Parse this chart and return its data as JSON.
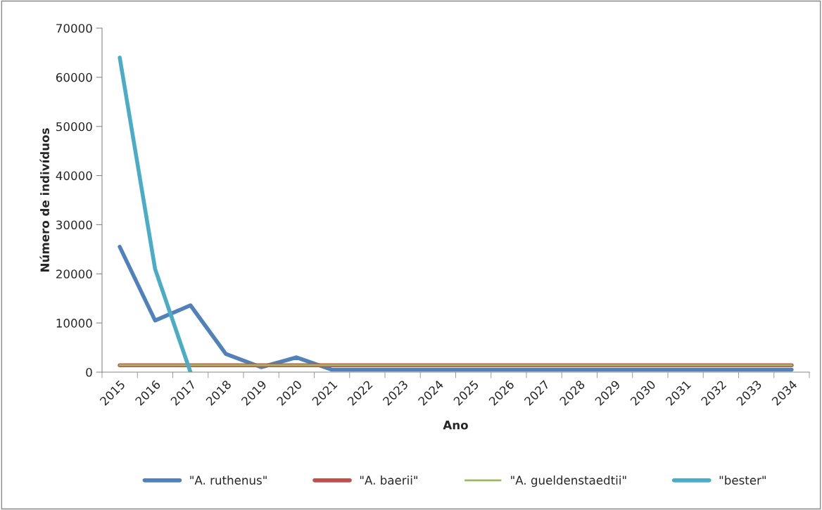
{
  "chart_data": {
    "type": "line",
    "xlabel": "Ano",
    "ylabel": "Número de indivíduos",
    "categories": [
      "2015",
      "2016",
      "2017",
      "2018",
      "2019",
      "2020",
      "2021",
      "2022",
      "2023",
      "2024",
      "2025",
      "2026",
      "2027",
      "2028",
      "2029",
      "2030",
      "2031",
      "2032",
      "2033",
      "2034"
    ],
    "series": [
      {
        "name": "\"A. ruthenus\"",
        "color": "#4f81bd",
        "values": [
          25500,
          10500,
          13600,
          3700,
          1000,
          3000,
          500,
          500,
          500,
          500,
          500,
          500,
          500,
          500,
          500,
          500,
          500,
          500,
          500,
          500
        ]
      },
      {
        "name": "\"A. baerii\"",
        "color": "#c0504d",
        "values": [
          1400,
          1400,
          1400,
          1400,
          1400,
          1400,
          1400,
          1400,
          1400,
          1400,
          1400,
          1400,
          1400,
          1400,
          1400,
          1400,
          1400,
          1400,
          1400,
          1400
        ]
      },
      {
        "name": "\"A. gueldenstaedtii\"",
        "color": "#9bbb59",
        "values": [
          1400,
          1400,
          1400,
          1400,
          1400,
          1400,
          1400,
          1400,
          1400,
          1400,
          1400,
          1400,
          1400,
          1400,
          1400,
          1400,
          1400,
          1400,
          1400,
          1400
        ]
      },
      {
        "name": "\"bester\"",
        "color": "#4bacc6",
        "values": [
          64000,
          21000,
          0,
          null,
          null,
          null,
          null,
          null,
          null,
          null,
          null,
          null,
          null,
          null,
          null,
          null,
          null,
          null,
          null,
          null
        ]
      }
    ],
    "ylim": [
      0,
      70000
    ],
    "yticks": [
      0,
      10000,
      20000,
      30000,
      40000,
      50000,
      60000,
      70000
    ],
    "grid": false,
    "legend": "bottom",
    "marker": "none",
    "line_style": "solid"
  }
}
